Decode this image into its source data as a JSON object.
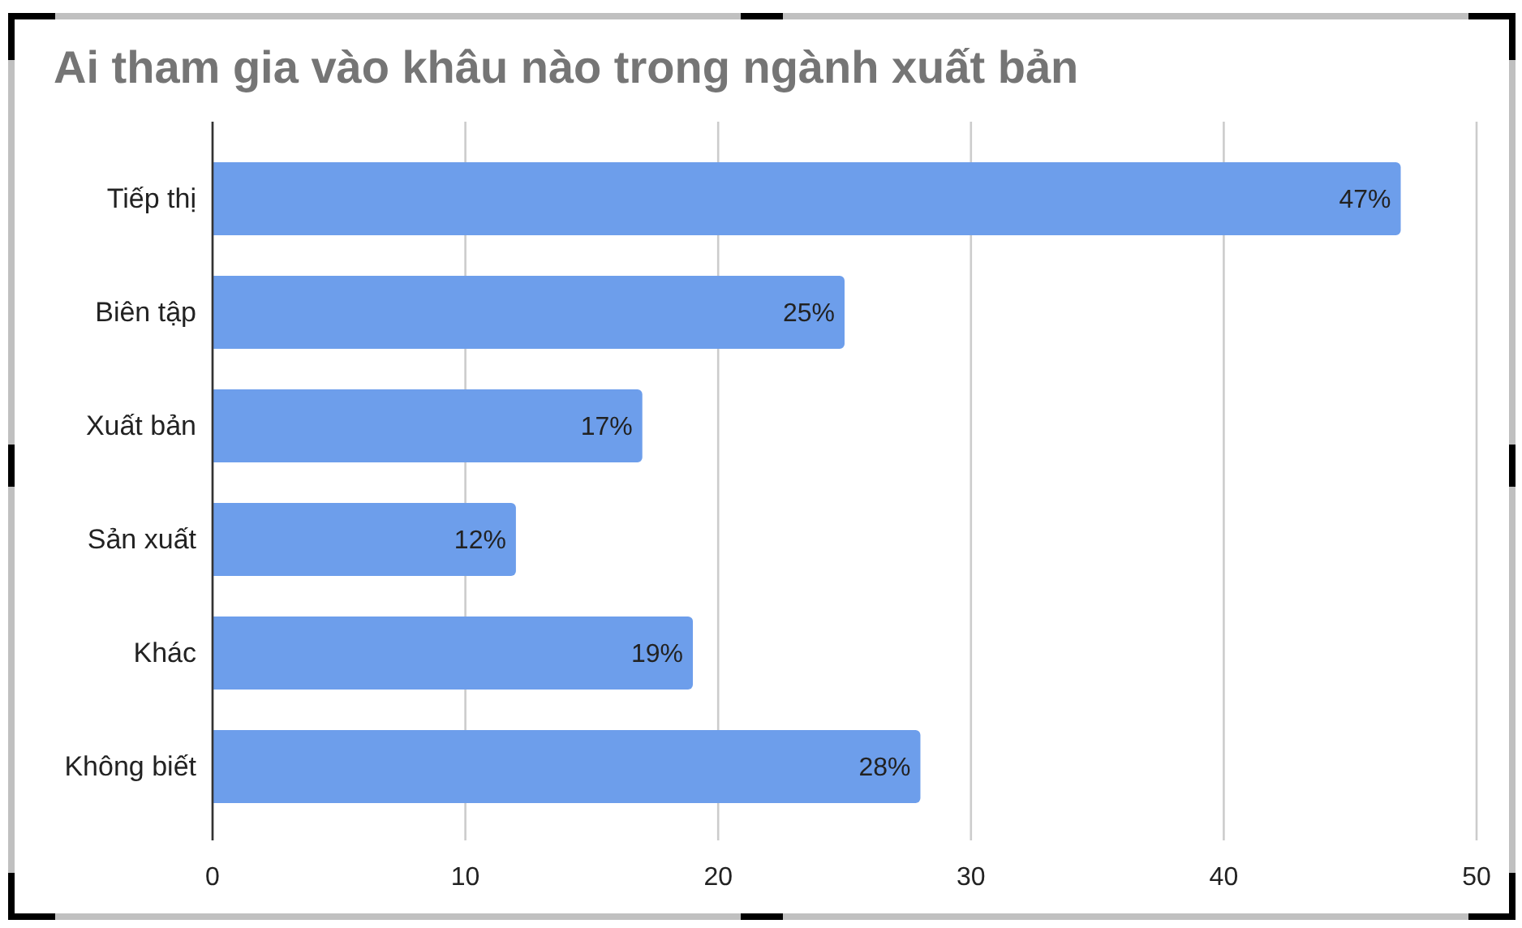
{
  "chart_data": {
    "type": "bar",
    "orientation": "horizontal",
    "title": "Ai tham gia vào khâu nào trong ngành xuất bản",
    "categories": [
      "Tiếp thị",
      "Biên tập",
      "Xuất bản",
      "Sản xuất",
      "Khác",
      "Không biết"
    ],
    "values": [
      47,
      25,
      17,
      12,
      19,
      28
    ],
    "color": "#6d9eeb",
    "value_labels": [
      "47%",
      "25%",
      "17%",
      "12%",
      "19%",
      "28%"
    ],
    "xlim": [
      0,
      50
    ],
    "xticks": [
      0,
      10,
      20,
      30,
      40,
      50
    ],
    "grid": "x"
  }
}
